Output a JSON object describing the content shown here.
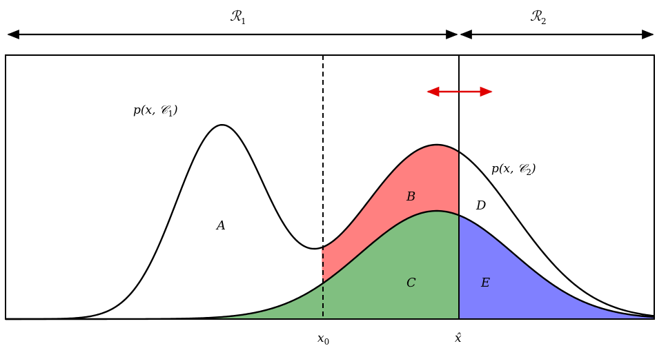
{
  "regions": [
    {
      "main": "ℛ",
      "sub": "1"
    },
    {
      "main": "ℛ",
      "sub": "2"
    }
  ],
  "curves": {
    "c1": {
      "text": "p(x, 𝒞",
      "sub": "1",
      "close": ")"
    },
    "c2": {
      "text": "p(x, 𝒞",
      "sub": "2",
      "close": ")"
    }
  },
  "areas": {
    "A": "A",
    "B": "B",
    "C": "C",
    "D": "D",
    "E": "E"
  },
  "axis": {
    "x0": {
      "main": "x",
      "sub": "0"
    },
    "xhat": "x̂"
  },
  "colors": {
    "red_area": "#ff8080",
    "green_area": "#80bf80",
    "blue_area": "#8080ff",
    "movement_arrow": "#e00000"
  }
}
